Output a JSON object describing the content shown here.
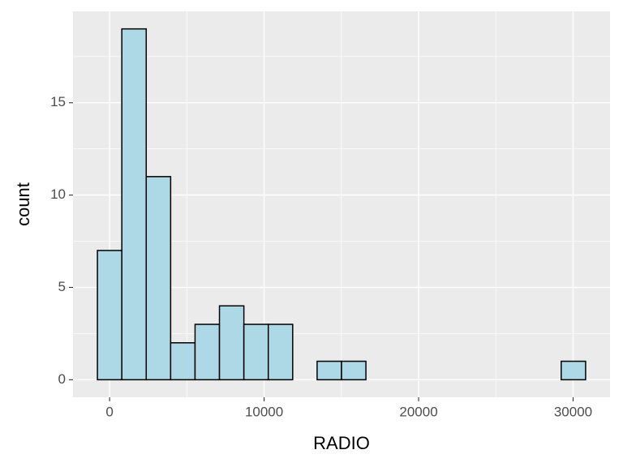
{
  "chart_data": {
    "type": "histogram",
    "x_label": "RADIO",
    "y_label": "count",
    "bins": [
      -790,
      790,
      2370,
      3950,
      5530,
      7110,
      8690,
      10270,
      11850,
      13430,
      15010,
      16590,
      18170,
      19750,
      21330,
      22910,
      24490,
      26070,
      27650,
      29230,
      30810
    ],
    "values": [
      7,
      19,
      11,
      2,
      3,
      4,
      3,
      3,
      0,
      1,
      1,
      0,
      0,
      0,
      0,
      0,
      0,
      0,
      0,
      1
    ],
    "color": "#add8e6",
    "edge_color": "#000000",
    "xlim": [
      -2370,
      32390
    ],
    "xticks": [
      0,
      10000,
      20000,
      30000
    ],
    "ylim": [
      -0.95,
      19.95
    ],
    "yticks": [
      0,
      5,
      10,
      15
    ],
    "grid": true
  }
}
